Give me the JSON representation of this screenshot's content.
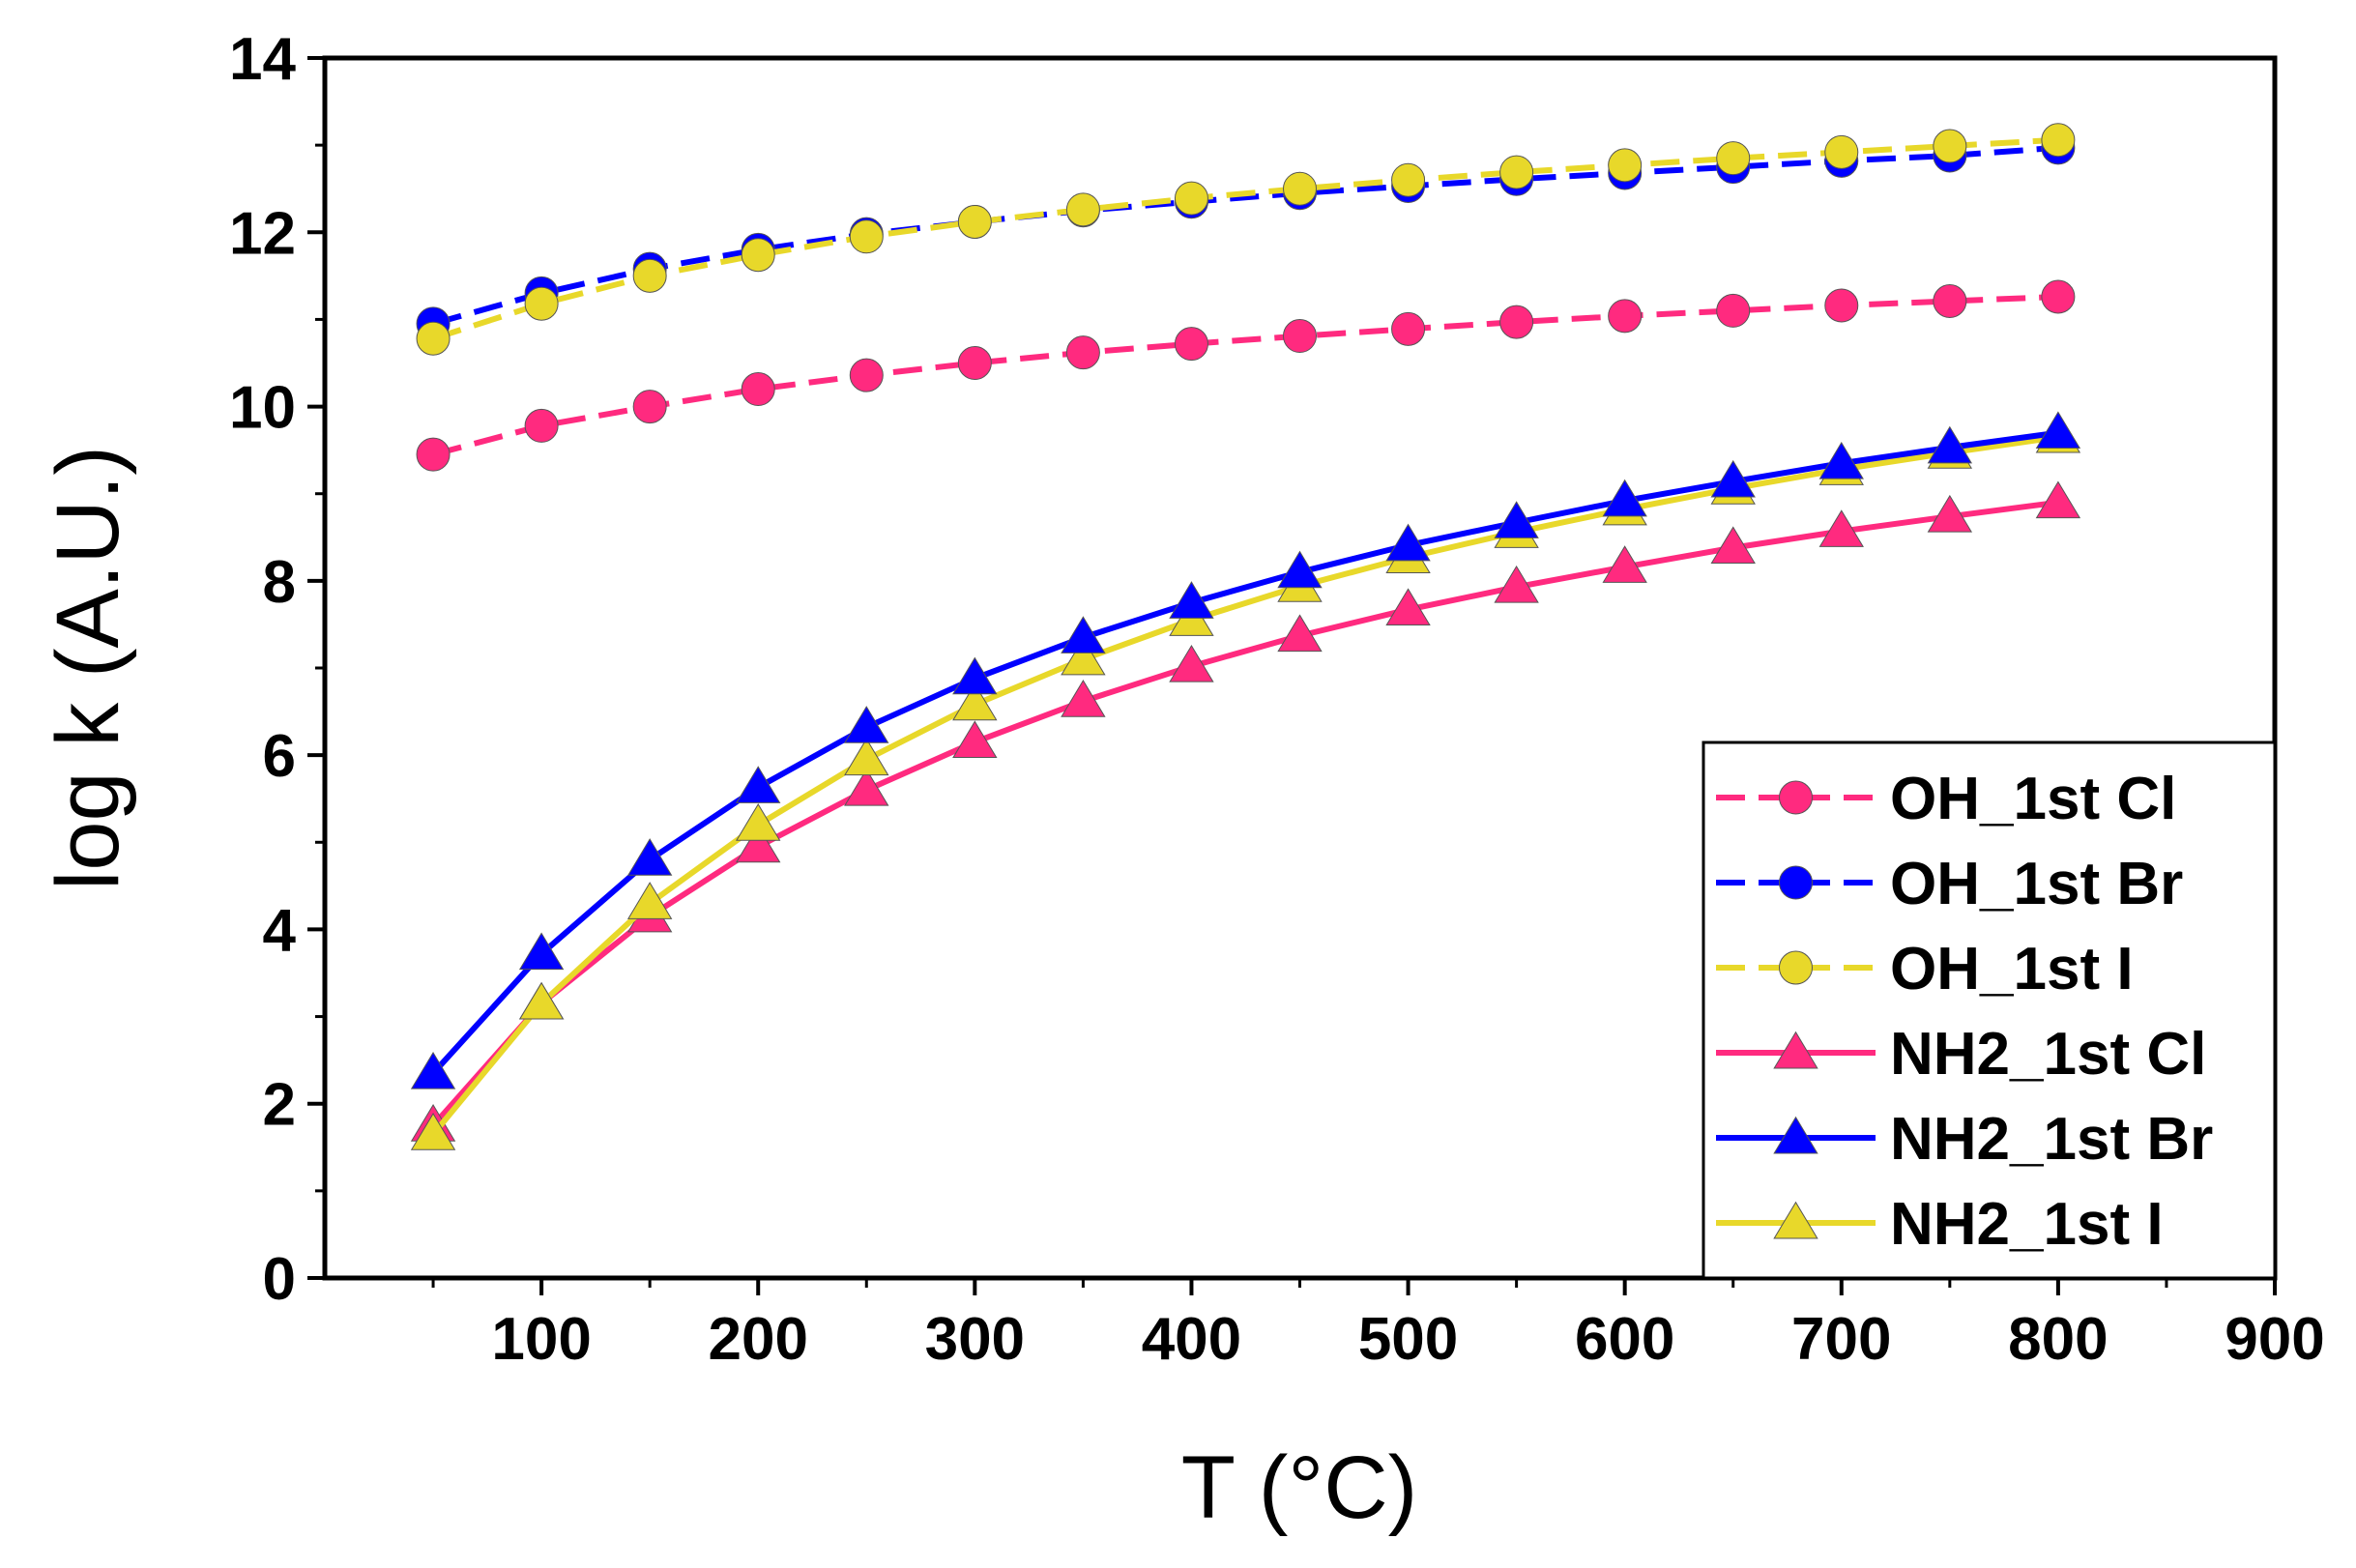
{
  "chart_data": {
    "type": "line",
    "title": "",
    "xlabel": "T (°C)",
    "ylabel": "log k (A.U.)",
    "xlim": [
      0,
      900
    ],
    "ylim": [
      0,
      14
    ],
    "xticks": [
      100,
      200,
      300,
      400,
      500,
      600,
      700,
      800,
      900
    ],
    "yticks": [
      0,
      2,
      4,
      6,
      8,
      10,
      12,
      14
    ],
    "legend_position": "bottom-right",
    "grid": false,
    "x": [
      50,
      100,
      150,
      200,
      250,
      300,
      350,
      400,
      450,
      500,
      550,
      600,
      650,
      700,
      750,
      800
    ],
    "series": [
      {
        "name": "OH_1st Cl",
        "color": "#ff2a7f",
        "marker": "circle",
        "dash": "dashed",
        "values": [
          9.45,
          9.78,
          10.0,
          10.2,
          10.36,
          10.5,
          10.62,
          10.72,
          10.81,
          10.89,
          10.97,
          11.04,
          11.1,
          11.16,
          11.21,
          11.26
        ]
      },
      {
        "name": "OH_1st Br",
        "color": "#0000ff",
        "marker": "circle",
        "dash": "dashed",
        "values": [
          10.95,
          11.3,
          11.58,
          11.8,
          11.98,
          12.12,
          12.25,
          12.35,
          12.45,
          12.53,
          12.61,
          12.68,
          12.75,
          12.82,
          12.88,
          12.97
        ]
      },
      {
        "name": "OH_1st I",
        "color": "#e8d82a",
        "marker": "circle",
        "dash": "dashed",
        "values": [
          10.78,
          11.18,
          11.5,
          11.74,
          11.95,
          12.12,
          12.26,
          12.39,
          12.5,
          12.6,
          12.69,
          12.77,
          12.85,
          12.92,
          12.99,
          13.06
        ]
      },
      {
        "name": "NH2_1st Cl",
        "color": "#ff2a7f",
        "marker": "triangle",
        "dash": "solid",
        "values": [
          1.75,
          3.15,
          4.15,
          4.95,
          5.6,
          6.15,
          6.62,
          7.02,
          7.37,
          7.67,
          7.93,
          8.16,
          8.38,
          8.57,
          8.74,
          8.9
        ]
      },
      {
        "name": "NH2_1st Br",
        "color": "#0000ff",
        "marker": "triangle",
        "dash": "solid",
        "values": [
          2.35,
          3.72,
          4.8,
          5.63,
          6.32,
          6.88,
          7.35,
          7.75,
          8.1,
          8.41,
          8.67,
          8.92,
          9.14,
          9.35,
          9.53,
          9.7
        ]
      },
      {
        "name": "NH2_1st I",
        "color": "#e8d82a",
        "marker": "triangle",
        "dash": "solid",
        "values": [
          1.65,
          3.15,
          4.3,
          5.2,
          5.95,
          6.58,
          7.1,
          7.55,
          7.94,
          8.27,
          8.56,
          8.82,
          9.06,
          9.28,
          9.47,
          9.65
        ]
      }
    ]
  }
}
